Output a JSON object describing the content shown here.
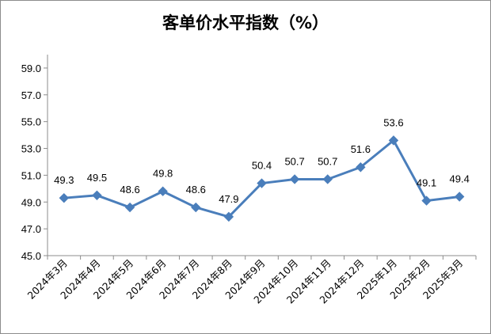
{
  "chart_data": {
    "type": "line",
    "title": "客单价水平指数（%）",
    "categories": [
      "2024年3月",
      "2024年4月",
      "2024年5月",
      "2024年6月",
      "2024年7月",
      "2024年8月",
      "2024年9月",
      "2024年10月",
      "2024年11月",
      "2024年12月",
      "2025年1月",
      "2025年2月",
      "2025年3月"
    ],
    "series": [
      {
        "values": [
          49.3,
          49.5,
          48.6,
          49.8,
          48.6,
          47.9,
          50.4,
          50.7,
          50.7,
          51.6,
          53.6,
          49.1,
          49.4
        ]
      }
    ],
    "data_labels": [
      "49.3",
      "49.5",
      "48.6",
      "49.8",
      "48.6",
      "47.9",
      "50.4",
      "50.7",
      "50.7",
      "51.6",
      "53.6",
      "49.1",
      "49.4"
    ],
    "y_ticks": [
      "45.0",
      "47.0",
      "49.0",
      "51.0",
      "53.0",
      "55.0",
      "57.0",
      "59.0"
    ],
    "ylim": [
      45.0,
      60.0
    ],
    "grid": false,
    "legend": "none",
    "xlabel": "",
    "ylabel": "",
    "line_color": "#4a7ebb"
  }
}
